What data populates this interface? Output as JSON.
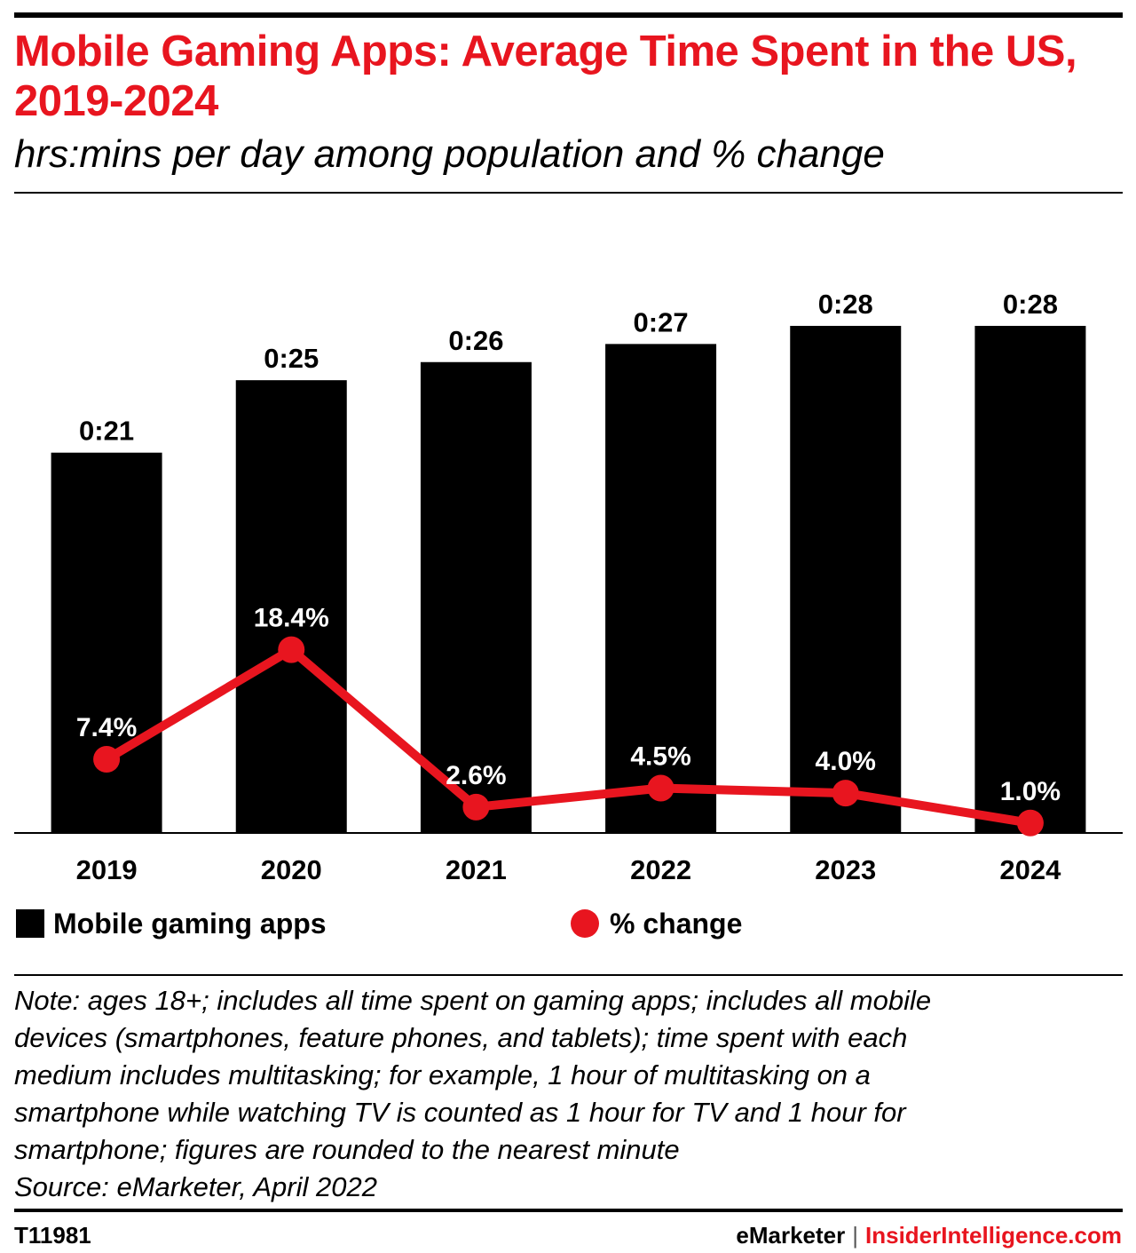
{
  "header": {
    "title": "Mobile Gaming Apps: Average Time Spent in the US, 2019-2024",
    "subtitle": "hrs:mins per day among population and % change"
  },
  "chart_data": {
    "type": "bar",
    "categories": [
      "2019",
      "2020",
      "2021",
      "2022",
      "2023",
      "2024"
    ],
    "series": [
      {
        "name": "Mobile gaming apps",
        "type": "bar",
        "values_minutes": [
          21,
          25,
          26,
          27,
          28,
          28
        ],
        "labels": [
          "0:21",
          "0:25",
          "0:26",
          "0:27",
          "0:28",
          "0:28"
        ],
        "color": "#000000"
      },
      {
        "name": "% change",
        "type": "line",
        "values": [
          7.4,
          18.4,
          2.6,
          4.5,
          4.0,
          1.0
        ],
        "labels": [
          "7.4%",
          "18.4%",
          "2.6%",
          "4.5%",
          "4.0%",
          "1.0%"
        ],
        "color": "#e8151f"
      }
    ],
    "ylim_minutes": [
      0,
      33
    ],
    "ylim_percent": [
      0,
      60
    ],
    "grid": false,
    "legend_position": "bottom"
  },
  "legend": {
    "bar_label": "Mobile gaming apps",
    "line_label": "% change"
  },
  "note": {
    "lines": [
      "Note: ages 18+; includes all time spent on gaming apps; includes all mobile",
      "devices (smartphones, feature phones, and tablets); time spent with each",
      "medium includes multitasking; for example, 1 hour of multitasking on a",
      "smartphone while watching TV is counted as 1 hour for TV and 1 hour for",
      "smartphone; figures are rounded to the nearest minute"
    ],
    "source": "Source: eMarketer, April 2022"
  },
  "footer": {
    "chart_id": "T11981",
    "brand_left": "eMarketer",
    "separator": "|",
    "brand_right": "InsiderIntelligence.com"
  }
}
